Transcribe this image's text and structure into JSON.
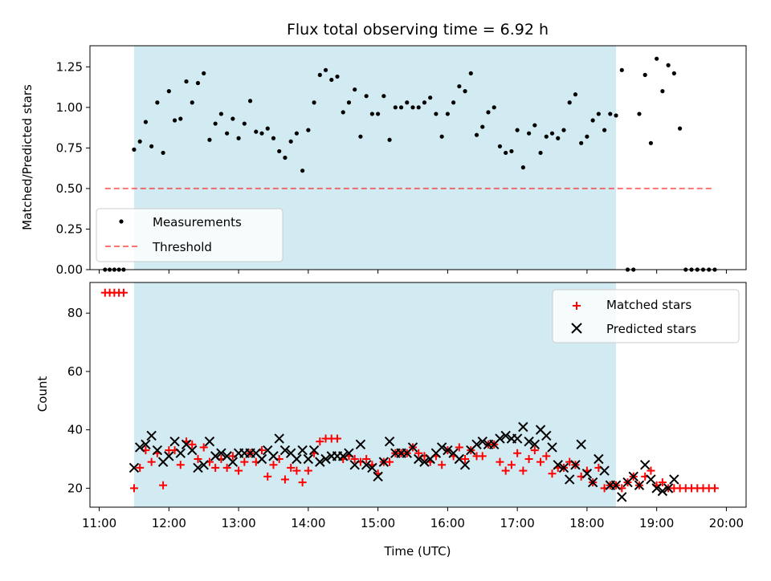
{
  "title": "Flux total observing time = 6.92 h",
  "xlabel": "Time (UTC)",
  "colors": {
    "shade": "#add8e6",
    "measurement": "#000000",
    "threshold": "#ff0000",
    "matched": "#ff0000",
    "predicted": "#000000"
  },
  "chart_data": [
    {
      "type": "scatter",
      "ylabel": "Matched/Predicted stars",
      "xlim": [
        "10:52",
        "20:17"
      ],
      "ylim": [
        0,
        1.38
      ],
      "yticks": [
        0.0,
        0.25,
        0.5,
        0.75,
        1.0,
        1.25
      ],
      "ytick_labels": [
        "0.00",
        "0.25",
        "0.50",
        "0.75",
        "1.00",
        "1.25"
      ],
      "shaded_interval": [
        "11:30",
        "18:25"
      ],
      "legend": {
        "location": "lower left",
        "entries": [
          "Measurements",
          "Threshold"
        ]
      },
      "series": [
        {
          "name": "Measurements",
          "marker": "dot",
          "x": [
            "11:05",
            "11:09",
            "11:13",
            "11:17",
            "11:21",
            "11:30",
            "11:35",
            "11:40",
            "11:45",
            "11:50",
            "11:55",
            "12:00",
            "12:05",
            "12:10",
            "12:15",
            "12:20",
            "12:25",
            "12:30",
            "12:35",
            "12:40",
            "12:45",
            "12:50",
            "12:55",
            "13:00",
            "13:05",
            "13:10",
            "13:15",
            "13:20",
            "13:25",
            "13:30",
            "13:35",
            "13:40",
            "13:45",
            "13:50",
            "13:55",
            "14:00",
            "14:05",
            "14:10",
            "14:15",
            "14:20",
            "14:25",
            "14:30",
            "14:35",
            "14:40",
            "14:45",
            "14:50",
            "14:55",
            "15:00",
            "15:05",
            "15:10",
            "15:15",
            "15:20",
            "15:25",
            "15:30",
            "15:35",
            "15:40",
            "15:45",
            "15:50",
            "15:55",
            "16:00",
            "16:05",
            "16:10",
            "16:15",
            "16:20",
            "16:25",
            "16:30",
            "16:35",
            "16:40",
            "16:45",
            "16:50",
            "16:55",
            "17:00",
            "17:05",
            "17:10",
            "17:15",
            "17:20",
            "17:25",
            "17:30",
            "17:35",
            "17:40",
            "17:45",
            "17:50",
            "17:55",
            "18:00",
            "18:05",
            "18:10",
            "18:15",
            "18:20",
            "18:25",
            "18:30",
            "18:35",
            "18:40",
            "18:45",
            "18:50",
            "18:55",
            "19:00",
            "19:05",
            "19:10",
            "19:15",
            "19:20",
            "19:25",
            "19:30",
            "19:35",
            "19:40",
            "19:45",
            "19:50"
          ],
          "y": [
            0.0,
            0.0,
            0.0,
            0.0,
            0.0,
            0.74,
            0.79,
            0.91,
            0.76,
            1.03,
            0.72,
            1.1,
            0.92,
            0.93,
            1.16,
            1.03,
            1.15,
            1.21,
            0.8,
            0.9,
            0.96,
            0.84,
            0.93,
            0.81,
            0.9,
            1.04,
            0.85,
            0.84,
            0.87,
            0.81,
            0.73,
            0.69,
            0.79,
            0.84,
            0.61,
            0.86,
            1.03,
            1.2,
            1.23,
            1.17,
            1.19,
            0.97,
            1.03,
            1.11,
            0.82,
            1.07,
            0.96,
            0.96,
            1.07,
            0.8,
            1.0,
            1.0,
            1.03,
            1.0,
            1.0,
            1.03,
            1.06,
            0.96,
            0.82,
            0.96,
            1.03,
            1.13,
            1.1,
            1.21,
            0.83,
            0.88,
            0.97,
            1.0,
            0.76,
            0.72,
            0.73,
            0.86,
            0.63,
            0.84,
            0.89,
            0.72,
            0.82,
            0.84,
            0.81,
            0.86,
            1.03,
            1.08,
            0.78,
            0.82,
            0.92,
            0.96,
            0.86,
            0.96,
            0.95,
            1.23,
            0.0,
            0.0,
            0.96,
            1.2,
            0.78,
            1.3,
            1.1,
            1.26,
            1.21,
            0.87,
            0.0,
            0.0,
            0.0,
            0.0,
            0.0,
            0.0
          ]
        },
        {
          "name": "Threshold",
          "style": "dashed",
          "x": [
            "11:05",
            "19:50"
          ],
          "y": [
            0.5,
            0.5
          ]
        }
      ]
    },
    {
      "type": "scatter",
      "ylabel": "Count",
      "xlim": [
        "10:52",
        "20:17"
      ],
      "ylim": [
        13.5,
        90.5
      ],
      "yticks": [
        20,
        40,
        60,
        80
      ],
      "ytick_labels": [
        "20",
        "40",
        "60",
        "80"
      ],
      "xticks": [
        "11:00",
        "12:00",
        "13:00",
        "14:00",
        "15:00",
        "16:00",
        "17:00",
        "18:00",
        "19:00",
        "20:00"
      ],
      "shaded_interval": [
        "11:30",
        "18:25"
      ],
      "legend": {
        "location": "upper right",
        "entries": [
          "Matched stars",
          "Predicted stars"
        ]
      },
      "series": [
        {
          "name": "Matched stars",
          "marker": "+",
          "x": [
            "11:05",
            "11:09",
            "11:13",
            "11:17",
            "11:21",
            "11:30",
            "11:35",
            "11:40",
            "11:45",
            "11:50",
            "11:55",
            "12:00",
            "12:05",
            "12:10",
            "12:15",
            "12:20",
            "12:25",
            "12:30",
            "12:35",
            "12:40",
            "12:45",
            "12:50",
            "12:55",
            "13:00",
            "13:05",
            "13:10",
            "13:15",
            "13:20",
            "13:25",
            "13:30",
            "13:35",
            "13:40",
            "13:45",
            "13:50",
            "13:55",
            "14:00",
            "14:05",
            "14:10",
            "14:15",
            "14:20",
            "14:25",
            "14:30",
            "14:35",
            "14:40",
            "14:45",
            "14:50",
            "14:55",
            "15:00",
            "15:05",
            "15:10",
            "15:15",
            "15:20",
            "15:25",
            "15:30",
            "15:35",
            "15:40",
            "15:45",
            "15:50",
            "15:55",
            "16:00",
            "16:05",
            "16:10",
            "16:15",
            "16:20",
            "16:25",
            "16:30",
            "16:35",
            "16:40",
            "16:45",
            "16:50",
            "16:55",
            "17:00",
            "17:05",
            "17:10",
            "17:15",
            "17:20",
            "17:25",
            "17:30",
            "17:35",
            "17:40",
            "17:45",
            "17:50",
            "17:55",
            "18:00",
            "18:05",
            "18:10",
            "18:15",
            "18:20",
            "18:25",
            "18:30",
            "18:35",
            "18:40",
            "18:45",
            "18:50",
            "18:55",
            "19:00",
            "19:05",
            "19:10",
            "19:15",
            "19:20",
            "19:25",
            "19:30",
            "19:35",
            "19:40",
            "19:45",
            "19:50"
          ],
          "y": [
            87,
            87,
            87,
            87,
            87,
            20,
            27,
            33,
            29,
            32,
            21,
            33,
            33,
            28,
            36,
            35,
            30,
            34,
            29,
            27,
            30,
            27,
            31,
            26,
            29,
            32,
            29,
            33,
            24,
            28,
            30,
            23,
            27,
            26,
            22,
            26,
            32,
            36,
            37,
            37,
            37,
            30,
            31,
            30,
            29,
            30,
            28,
            25,
            29,
            29,
            32,
            32,
            32,
            34,
            32,
            31,
            29,
            31,
            28,
            33,
            31,
            34,
            30,
            33,
            31,
            31,
            35,
            35,
            29,
            26,
            28,
            32,
            26,
            30,
            33,
            29,
            31,
            25,
            27,
            27,
            29,
            28,
            24,
            26,
            22,
            27,
            20,
            21,
            21,
            20,
            22,
            24,
            21,
            24,
            26,
            21,
            22,
            20,
            20,
            20,
            20,
            20,
            20,
            20,
            20,
            20
          ]
        },
        {
          "name": "Predicted stars",
          "marker": "x",
          "x": [
            "11:30",
            "11:35",
            "11:40",
            "11:45",
            "11:50",
            "11:55",
            "12:00",
            "12:05",
            "12:10",
            "12:15",
            "12:20",
            "12:25",
            "12:30",
            "12:35",
            "12:40",
            "12:45",
            "12:50",
            "12:55",
            "13:00",
            "13:05",
            "13:10",
            "13:15",
            "13:20",
            "13:25",
            "13:30",
            "13:35",
            "13:40",
            "13:45",
            "13:50",
            "13:55",
            "14:00",
            "14:05",
            "14:10",
            "14:15",
            "14:20",
            "14:25",
            "14:30",
            "14:35",
            "14:40",
            "14:45",
            "14:50",
            "14:55",
            "15:00",
            "15:05",
            "15:10",
            "15:15",
            "15:20",
            "15:25",
            "15:30",
            "15:35",
            "15:40",
            "15:45",
            "15:50",
            "15:55",
            "16:00",
            "16:05",
            "16:10",
            "16:15",
            "16:20",
            "16:25",
            "16:30",
            "16:35",
            "16:40",
            "16:45",
            "16:50",
            "16:55",
            "17:00",
            "17:05",
            "17:10",
            "17:15",
            "17:20",
            "17:25",
            "17:30",
            "17:35",
            "17:40",
            "17:45",
            "17:50",
            "17:55",
            "18:00",
            "18:05",
            "18:10",
            "18:15",
            "18:20",
            "18:25",
            "18:30",
            "18:35",
            "18:40",
            "18:45",
            "18:50",
            "18:55",
            "19:00",
            "19:05",
            "19:10",
            "19:15"
          ],
          "y": [
            27,
            34,
            35,
            38,
            33,
            29,
            31,
            36,
            32,
            35,
            33,
            27,
            28,
            36,
            31,
            32,
            31,
            29,
            32,
            32,
            32,
            32,
            30,
            33,
            31,
            37,
            33,
            32,
            30,
            33,
            30,
            33,
            29,
            30,
            31,
            31,
            31,
            32,
            28,
            35,
            28,
            27,
            24,
            29,
            36,
            32,
            32,
            32,
            34,
            30,
            29,
            30,
            32,
            34,
            33,
            32,
            30,
            28,
            33,
            35,
            36,
            35,
            35,
            37,
            38,
            37,
            37,
            41,
            36,
            35,
            40,
            38,
            34,
            28,
            27,
            23,
            28,
            35,
            25,
            22,
            30,
            26,
            21,
            21,
            17,
            22,
            24,
            21,
            28,
            23,
            20,
            19,
            20,
            23
          ]
        }
      ]
    }
  ]
}
